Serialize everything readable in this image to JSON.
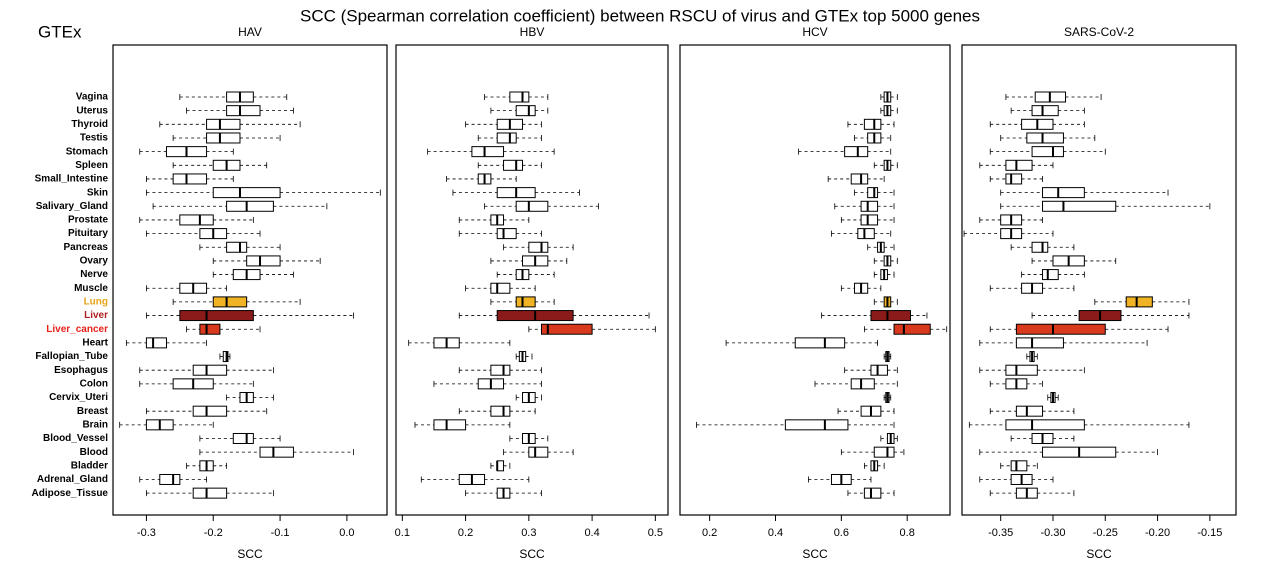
{
  "title": "SCC (Spearman correlation coefficient) between RSCU of virus and GTEx top 5000 genes",
  "label": "GTEx",
  "categories": [
    "Vagina",
    "Uterus",
    "Thyroid",
    "Testis",
    "Stomach",
    "Spleen",
    "Small_Intestine",
    "Skin",
    "Salivary_Gland",
    "Prostate",
    "Pituitary",
    "Pancreas",
    "Ovary",
    "Nerve",
    "Muscle",
    "Lung",
    "Liver",
    "Liver_cancer",
    "Heart",
    "Fallopian_Tube",
    "Esophagus",
    "Colon",
    "Cervix_Uteri",
    "Breast",
    "Brain",
    "Blood_Vessel",
    "Blood",
    "Bladder",
    "Adrenal_Gland",
    "Adipose_Tissue"
  ],
  "label_colors": [
    "#000000",
    "#000000",
    "#000000",
    "#000000",
    "#000000",
    "#000000",
    "#000000",
    "#000000",
    "#000000",
    "#000000",
    "#000000",
    "#000000",
    "#000000",
    "#000000",
    "#000000",
    "#e8a317",
    "#b22222",
    "#e8201a",
    "#000000",
    "#000000",
    "#000000",
    "#000000",
    "#000000",
    "#000000",
    "#000000",
    "#000000",
    "#000000",
    "#000000",
    "#000000",
    "#000000"
  ],
  "box_colors": [
    "#ffffff",
    "#ffffff",
    "#ffffff",
    "#ffffff",
    "#ffffff",
    "#ffffff",
    "#ffffff",
    "#ffffff",
    "#ffffff",
    "#ffffff",
    "#ffffff",
    "#ffffff",
    "#ffffff",
    "#ffffff",
    "#ffffff",
    "#f0b323",
    "#8b1a1a",
    "#d93a1e",
    "#ffffff",
    "#ffffff",
    "#ffffff",
    "#ffffff",
    "#ffffff",
    "#ffffff",
    "#ffffff",
    "#ffffff",
    "#ffffff",
    "#ffffff",
    "#ffffff",
    "#ffffff"
  ],
  "chart_data": [
    {
      "type": "box",
      "title": "HAV",
      "xlabel": "SCC",
      "xlim": [
        -0.35,
        0.06
      ],
      "xticks": [
        -0.3,
        -0.2,
        -0.1,
        {
          "value": 0,
          "label": "0.0"
        }
      ],
      "values": [
        [
          -0.25,
          -0.18,
          -0.16,
          -0.14,
          -0.09
        ],
        [
          -0.24,
          -0.18,
          -0.16,
          -0.13,
          -0.08
        ],
        [
          -0.28,
          -0.21,
          -0.19,
          -0.16,
          -0.07
        ],
        [
          -0.26,
          -0.21,
          -0.19,
          -0.16,
          -0.1
        ],
        [
          -0.31,
          -0.27,
          -0.24,
          -0.21,
          -0.17
        ],
        [
          -0.26,
          -0.2,
          -0.18,
          -0.16,
          -0.12
        ],
        [
          -0.3,
          -0.26,
          -0.24,
          -0.21,
          -0.17
        ],
        [
          -0.3,
          -0.2,
          -0.16,
          -0.1,
          0.05
        ],
        [
          -0.29,
          -0.18,
          -0.15,
          -0.11,
          -0.03
        ],
        [
          -0.31,
          -0.25,
          -0.22,
          -0.2,
          -0.14
        ],
        [
          -0.3,
          -0.22,
          -0.2,
          -0.18,
          -0.13
        ],
        [
          -0.22,
          -0.18,
          -0.16,
          -0.15,
          -0.1
        ],
        [
          -0.2,
          -0.15,
          -0.13,
          -0.1,
          -0.04
        ],
        [
          -0.2,
          -0.17,
          -0.15,
          -0.13,
          -0.08
        ],
        [
          -0.3,
          -0.25,
          -0.23,
          -0.21,
          -0.18
        ],
        [
          -0.26,
          -0.2,
          -0.18,
          -0.15,
          -0.07
        ],
        [
          -0.3,
          -0.25,
          -0.21,
          -0.14,
          0.01
        ],
        [
          -0.24,
          -0.22,
          -0.21,
          -0.19,
          -0.13
        ],
        [
          -0.33,
          -0.3,
          -0.29,
          -0.27,
          -0.21
        ],
        [
          -0.19,
          -0.185,
          -0.18,
          -0.178,
          -0.175
        ],
        [
          -0.31,
          -0.23,
          -0.21,
          -0.18,
          -0.11
        ],
        [
          -0.31,
          -0.26,
          -0.23,
          -0.2,
          -0.14
        ],
        [
          -0.18,
          -0.16,
          -0.15,
          -0.14,
          -0.11
        ],
        [
          -0.3,
          -0.23,
          -0.21,
          -0.18,
          -0.12
        ],
        [
          -0.34,
          -0.3,
          -0.28,
          -0.26,
          -0.2
        ],
        [
          -0.22,
          -0.17,
          -0.15,
          -0.14,
          -0.1
        ],
        [
          -0.22,
          -0.13,
          -0.11,
          -0.08,
          0.01
        ],
        [
          -0.24,
          -0.22,
          -0.21,
          -0.2,
          -0.18
        ],
        [
          -0.31,
          -0.28,
          -0.26,
          -0.25,
          -0.21
        ],
        [
          -0.3,
          -0.23,
          -0.21,
          -0.18,
          -0.11
        ]
      ]
    },
    {
      "type": "box",
      "title": "HBV",
      "xlabel": "SCC",
      "xlim": [
        0.09,
        0.52
      ],
      "xticks": [
        0.1,
        0.2,
        0.3,
        0.4,
        0.5
      ],
      "values": [
        [
          0.23,
          0.27,
          0.29,
          0.3,
          0.33
        ],
        [
          0.24,
          0.28,
          0.3,
          0.31,
          0.33
        ],
        [
          0.2,
          0.25,
          0.27,
          0.29,
          0.32
        ],
        [
          0.22,
          0.25,
          0.27,
          0.28,
          0.32
        ],
        [
          0.14,
          0.21,
          0.23,
          0.26,
          0.34
        ],
        [
          0.22,
          0.26,
          0.28,
          0.29,
          0.32
        ],
        [
          0.17,
          0.22,
          0.23,
          0.24,
          0.28
        ],
        [
          0.18,
          0.25,
          0.28,
          0.31,
          0.38
        ],
        [
          0.23,
          0.28,
          0.3,
          0.33,
          0.41
        ],
        [
          0.19,
          0.24,
          0.25,
          0.26,
          0.3
        ],
        [
          0.19,
          0.25,
          0.26,
          0.28,
          0.32
        ],
        [
          0.26,
          0.3,
          0.32,
          0.33,
          0.37
        ],
        [
          0.24,
          0.29,
          0.31,
          0.33,
          0.36
        ],
        [
          0.25,
          0.28,
          0.29,
          0.3,
          0.34
        ],
        [
          0.2,
          0.24,
          0.25,
          0.27,
          0.31
        ],
        [
          0.24,
          0.28,
          0.29,
          0.31,
          0.34
        ],
        [
          0.19,
          0.25,
          0.31,
          0.37,
          0.49
        ],
        [
          0.3,
          0.32,
          0.33,
          0.4,
          0.5
        ],
        [
          0.11,
          0.15,
          0.17,
          0.19,
          0.27
        ],
        [
          0.28,
          0.285,
          0.29,
          0.295,
          0.305
        ],
        [
          0.19,
          0.24,
          0.26,
          0.27,
          0.32
        ],
        [
          0.15,
          0.22,
          0.24,
          0.26,
          0.32
        ],
        [
          0.28,
          0.29,
          0.3,
          0.31,
          0.32
        ],
        [
          0.19,
          0.24,
          0.26,
          0.27,
          0.31
        ],
        [
          0.12,
          0.15,
          0.17,
          0.2,
          0.27
        ],
        [
          0.27,
          0.29,
          0.3,
          0.31,
          0.33
        ],
        [
          0.26,
          0.3,
          0.31,
          0.33,
          0.37
        ],
        [
          0.24,
          0.25,
          0.25,
          0.26,
          0.27
        ],
        [
          0.13,
          0.19,
          0.21,
          0.23,
          0.3
        ],
        [
          0.2,
          0.25,
          0.26,
          0.27,
          0.32
        ]
      ]
    },
    {
      "type": "box",
      "title": "HCV",
      "xlabel": "SCC",
      "xlim": [
        0.11,
        0.93
      ],
      "xticks": [
        0.2,
        0.4,
        0.6,
        0.8
      ],
      "values": [
        [
          0.72,
          0.73,
          0.74,
          0.75,
          0.77
        ],
        [
          0.72,
          0.73,
          0.74,
          0.75,
          0.77
        ],
        [
          0.62,
          0.67,
          0.7,
          0.72,
          0.76
        ],
        [
          0.64,
          0.68,
          0.7,
          0.72,
          0.75
        ],
        [
          0.47,
          0.61,
          0.65,
          0.68,
          0.75
        ],
        [
          0.7,
          0.73,
          0.74,
          0.75,
          0.77
        ],
        [
          0.56,
          0.63,
          0.66,
          0.68,
          0.73
        ],
        [
          0.64,
          0.68,
          0.7,
          0.71,
          0.76
        ],
        [
          0.58,
          0.66,
          0.68,
          0.71,
          0.76
        ],
        [
          0.6,
          0.66,
          0.68,
          0.71,
          0.76
        ],
        [
          0.57,
          0.65,
          0.67,
          0.7,
          0.75
        ],
        [
          0.68,
          0.71,
          0.72,
          0.73,
          0.76
        ],
        [
          0.7,
          0.73,
          0.74,
          0.75,
          0.77
        ],
        [
          0.7,
          0.72,
          0.73,
          0.74,
          0.76
        ],
        [
          0.6,
          0.64,
          0.66,
          0.68,
          0.72
        ],
        [
          0.7,
          0.73,
          0.74,
          0.75,
          0.77
        ],
        [
          0.54,
          0.69,
          0.74,
          0.81,
          0.86
        ],
        [
          0.67,
          0.76,
          0.79,
          0.87,
          0.92
        ],
        [
          0.25,
          0.46,
          0.55,
          0.61,
          0.71
        ],
        [
          0.73,
          0.735,
          0.74,
          0.745,
          0.75
        ],
        [
          0.61,
          0.69,
          0.71,
          0.74,
          0.77
        ],
        [
          0.52,
          0.63,
          0.66,
          0.7,
          0.77
        ],
        [
          0.73,
          0.735,
          0.74,
          0.745,
          0.75
        ],
        [
          0.59,
          0.66,
          0.69,
          0.72,
          0.76
        ],
        [
          0.16,
          0.43,
          0.55,
          0.62,
          0.76
        ],
        [
          0.72,
          0.74,
          0.75,
          0.76,
          0.77
        ],
        [
          0.6,
          0.7,
          0.74,
          0.76,
          0.79
        ],
        [
          0.67,
          0.69,
          0.7,
          0.71,
          0.73
        ],
        [
          0.5,
          0.57,
          0.6,
          0.63,
          0.69
        ],
        [
          0.62,
          0.67,
          0.69,
          0.72,
          0.76
        ]
      ]
    },
    {
      "type": "box",
      "title": "SARS-CoV-2",
      "xlabel": "SCC",
      "xlim": [
        -0.387,
        -0.125
      ],
      "xticks": [
        -0.35,
        {
          "value": -0.3,
          "label": "-0.30"
        },
        -0.25,
        {
          "value": -0.2,
          "label": "-0.20"
        },
        -0.15
      ],
      "values": [
        [
          -0.345,
          -0.317,
          -0.303,
          -0.288,
          -0.254
        ],
        [
          -0.34,
          -0.32,
          -0.31,
          -0.295,
          -0.27
        ],
        [
          -0.36,
          -0.33,
          -0.315,
          -0.3,
          -0.27
        ],
        [
          -0.35,
          -0.325,
          -0.31,
          -0.29,
          -0.26
        ],
        [
          -0.36,
          -0.32,
          -0.3,
          -0.29,
          -0.25
        ],
        [
          -0.37,
          -0.345,
          -0.335,
          -0.32,
          -0.3
        ],
        [
          -0.36,
          -0.345,
          -0.34,
          -0.33,
          -0.31
        ],
        [
          -0.35,
          -0.31,
          -0.295,
          -0.27,
          -0.19
        ],
        [
          -0.35,
          -0.31,
          -0.29,
          -0.24,
          -0.15
        ],
        [
          -0.37,
          -0.35,
          -0.34,
          -0.33,
          -0.31
        ],
        [
          -0.385,
          -0.35,
          -0.34,
          -0.33,
          -0.3
        ],
        [
          -0.34,
          -0.32,
          -0.31,
          -0.305,
          -0.28
        ],
        [
          -0.32,
          -0.3,
          -0.285,
          -0.27,
          -0.24
        ],
        [
          -0.33,
          -0.31,
          -0.305,
          -0.295,
          -0.27
        ],
        [
          -0.36,
          -0.33,
          -0.32,
          -0.31,
          -0.28
        ],
        [
          -0.26,
          -0.23,
          -0.22,
          -0.205,
          -0.17
        ],
        [
          -0.32,
          -0.275,
          -0.255,
          -0.235,
          -0.17
        ],
        [
          -0.36,
          -0.335,
          -0.3,
          -0.25,
          -0.19
        ],
        [
          -0.37,
          -0.335,
          -0.32,
          -0.29,
          -0.21
        ],
        [
          -0.325,
          -0.322,
          -0.32,
          -0.318,
          -0.315
        ],
        [
          -0.37,
          -0.345,
          -0.335,
          -0.315,
          -0.27
        ],
        [
          -0.36,
          -0.345,
          -0.335,
          -0.325,
          -0.31
        ],
        [
          -0.305,
          -0.302,
          -0.3,
          -0.298,
          -0.295
        ],
        [
          -0.36,
          -0.335,
          -0.325,
          -0.31,
          -0.28
        ],
        [
          -0.38,
          -0.345,
          -0.32,
          -0.27,
          -0.17
        ],
        [
          -0.34,
          -0.32,
          -0.31,
          -0.3,
          -0.28
        ],
        [
          -0.37,
          -0.31,
          -0.275,
          -0.24,
          -0.2
        ],
        [
          -0.35,
          -0.34,
          -0.335,
          -0.325,
          -0.315
        ],
        [
          -0.37,
          -0.34,
          -0.33,
          -0.32,
          -0.3
        ],
        [
          -0.36,
          -0.335,
          -0.325,
          -0.315,
          -0.28
        ]
      ]
    }
  ]
}
